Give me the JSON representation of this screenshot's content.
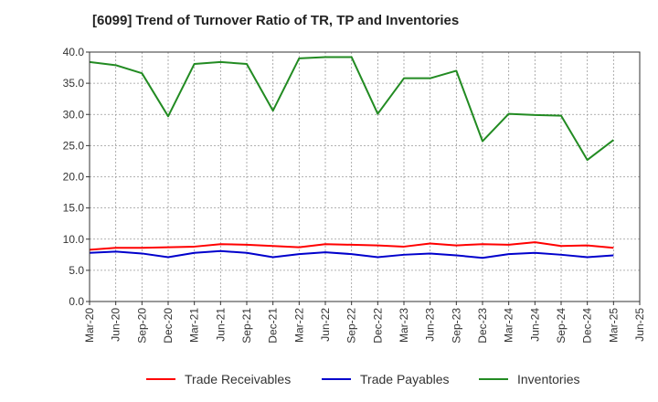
{
  "chart_data": {
    "type": "line",
    "title": "[6099]  Trend of Turnover Ratio of TR, TP and Inventories",
    "xlabel": "",
    "ylabel": "",
    "ylim": [
      0,
      40
    ],
    "yticks": [
      "0.0",
      "5.0",
      "10.0",
      "15.0",
      "20.0",
      "25.0",
      "30.0",
      "35.0",
      "40.0"
    ],
    "xticks": [
      "Mar-20",
      "Jun-20",
      "Sep-20",
      "Dec-20",
      "Mar-21",
      "Jun-21",
      "Sep-21",
      "Dec-21",
      "Mar-22",
      "Jun-22",
      "Sep-22",
      "Dec-22",
      "Mar-23",
      "Jun-23",
      "Sep-23",
      "Dec-23",
      "Mar-24",
      "Jun-24",
      "Sep-24",
      "Dec-24",
      "Mar-25",
      "Jun-25"
    ],
    "x": [
      "Mar-20",
      "Jun-20",
      "Sep-20",
      "Dec-20",
      "Mar-21",
      "Jun-21",
      "Sep-21",
      "Dec-21",
      "Mar-22",
      "Jun-22",
      "Sep-22",
      "Dec-22",
      "Mar-23",
      "Jun-23",
      "Sep-23",
      "Dec-23",
      "Mar-24",
      "Jun-24",
      "Sep-24",
      "Dec-24",
      "Mar-25"
    ],
    "grid": true,
    "legend_position": "bottom",
    "series": [
      {
        "name": "Trade Receivables",
        "color": "#ff0000",
        "values": [
          8.3,
          8.6,
          8.6,
          8.7,
          8.8,
          9.2,
          9.1,
          8.9,
          8.7,
          9.2,
          9.1,
          9.0,
          8.8,
          9.3,
          9.0,
          9.2,
          9.1,
          9.5,
          8.9,
          9.0,
          8.6
        ]
      },
      {
        "name": "Trade Payables",
        "color": "#0000cc",
        "values": [
          7.8,
          8.0,
          7.7,
          7.1,
          7.8,
          8.1,
          7.8,
          7.1,
          7.6,
          7.9,
          7.6,
          7.1,
          7.5,
          7.7,
          7.4,
          7.0,
          7.6,
          7.8,
          7.5,
          7.1,
          7.4
        ]
      },
      {
        "name": "Inventories",
        "color": "#228b22",
        "values": [
          38.4,
          37.9,
          36.6,
          29.7,
          38.1,
          38.4,
          38.1,
          30.6,
          39.0,
          39.2,
          39.2,
          30.1,
          35.8,
          35.8,
          37.0,
          25.7,
          30.1,
          29.9,
          29.8,
          22.7,
          25.9
        ]
      }
    ]
  }
}
